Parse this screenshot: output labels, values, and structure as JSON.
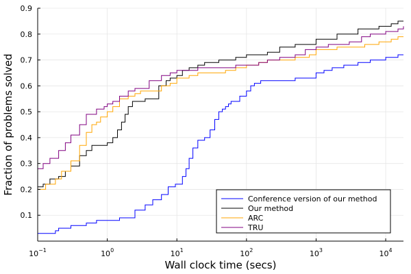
{
  "chart_data": {
    "type": "line",
    "title": "",
    "xlabel": "Wall clock time (secs)",
    "ylabel": "Fraction of problems solved",
    "xscale": "log10",
    "xlim": [
      0.1,
      18000
    ],
    "ylim": [
      0.0,
      0.9
    ],
    "grid": true,
    "legend_position": "bottom-right",
    "x_ticks": [
      {
        "value": 0.1,
        "base": "10",
        "exp": "−1"
      },
      {
        "value": 1,
        "base": "10",
        "exp": "0"
      },
      {
        "value": 10,
        "base": "10",
        "exp": "1"
      },
      {
        "value": 100,
        "base": "10",
        "exp": "2"
      },
      {
        "value": 1000,
        "base": "10",
        "exp": "3"
      },
      {
        "value": 10000,
        "base": "10",
        "exp": "4"
      }
    ],
    "y_ticks": [
      "0.1",
      "0.2",
      "0.3",
      "0.4",
      "0.5",
      "0.6",
      "0.7",
      "0.8",
      "0.9"
    ],
    "series": [
      {
        "name": "Conference version of our method",
        "color": "#0000ff",
        "x": [
          0.1,
          0.18,
          0.2,
          0.3,
          0.5,
          0.7,
          1.5,
          2.5,
          3.5,
          4.5,
          6,
          7.5,
          9.5,
          12,
          13.5,
          15,
          17,
          20,
          25,
          30,
          35,
          40,
          45,
          50,
          55,
          60,
          80,
          100,
          115,
          130,
          160,
          200,
          300,
          500,
          700,
          1000,
          1300,
          1700,
          2500,
          4000,
          6000,
          10000,
          15000,
          18000
        ],
        "y": [
          0.03,
          0.04,
          0.05,
          0.06,
          0.07,
          0.08,
          0.09,
          0.12,
          0.14,
          0.16,
          0.18,
          0.21,
          0.22,
          0.25,
          0.28,
          0.32,
          0.36,
          0.39,
          0.4,
          0.43,
          0.47,
          0.5,
          0.51,
          0.52,
          0.53,
          0.54,
          0.56,
          0.58,
          0.6,
          0.61,
          0.62,
          0.62,
          0.62,
          0.63,
          0.63,
          0.65,
          0.66,
          0.67,
          0.68,
          0.69,
          0.7,
          0.71,
          0.72,
          0.72
        ]
      },
      {
        "name": "Our method",
        "color": "#000000",
        "x": [
          0.1,
          0.12,
          0.15,
          0.2,
          0.25,
          0.3,
          0.4,
          0.5,
          0.6,
          0.8,
          1.0,
          1.2,
          1.4,
          1.6,
          1.8,
          2.0,
          2.3,
          2.6,
          3.0,
          3.5,
          5.5,
          7,
          8,
          10,
          12,
          15,
          20,
          25,
          30,
          40,
          50,
          70,
          100,
          130,
          200,
          300,
          500,
          1000,
          2000,
          4000,
          8000,
          12000,
          15000,
          18000
        ],
        "y": [
          0.21,
          0.22,
          0.24,
          0.25,
          0.27,
          0.29,
          0.33,
          0.35,
          0.37,
          0.37,
          0.38,
          0.4,
          0.43,
          0.46,
          0.49,
          0.52,
          0.54,
          0.54,
          0.54,
          0.55,
          0.6,
          0.62,
          0.63,
          0.64,
          0.66,
          0.67,
          0.68,
          0.69,
          0.69,
          0.7,
          0.7,
          0.71,
          0.72,
          0.72,
          0.73,
          0.75,
          0.76,
          0.78,
          0.8,
          0.82,
          0.83,
          0.84,
          0.85,
          0.85
        ]
      },
      {
        "name": "ARC",
        "color": "#ffa500",
        "x": [
          0.1,
          0.13,
          0.18,
          0.22,
          0.3,
          0.4,
          0.5,
          0.6,
          0.7,
          0.8,
          1.0,
          1.2,
          1.5,
          2.0,
          2.5,
          3.0,
          4.0,
          6,
          8,
          10,
          15,
          20,
          30,
          50,
          70,
          100,
          150,
          200,
          300,
          500,
          800,
          1000,
          1500,
          2000,
          3000,
          5000,
          8000,
          12000,
          15000,
          18000
        ],
        "y": [
          0.2,
          0.22,
          0.24,
          0.27,
          0.31,
          0.37,
          0.42,
          0.45,
          0.46,
          0.48,
          0.5,
          0.52,
          0.55,
          0.56,
          0.57,
          0.58,
          0.58,
          0.6,
          0.61,
          0.63,
          0.64,
          0.65,
          0.65,
          0.66,
          0.67,
          0.68,
          0.69,
          0.7,
          0.7,
          0.71,
          0.72,
          0.74,
          0.74,
          0.75,
          0.75,
          0.76,
          0.77,
          0.78,
          0.79,
          0.79
        ]
      },
      {
        "name": "TRU",
        "color": "#800080",
        "x": [
          0.1,
          0.12,
          0.15,
          0.2,
          0.25,
          0.3,
          0.4,
          0.5,
          0.7,
          0.9,
          1.0,
          1.2,
          1.5,
          2.0,
          2.5,
          3.0,
          4.0,
          6,
          8,
          10,
          15,
          20,
          30,
          50,
          70,
          100,
          150,
          200,
          300,
          500,
          700,
          1000,
          1500,
          2000,
          3000,
          4500,
          6000,
          10000,
          15000,
          18000
        ],
        "y": [
          0.28,
          0.3,
          0.32,
          0.35,
          0.38,
          0.41,
          0.45,
          0.49,
          0.51,
          0.52,
          0.53,
          0.54,
          0.56,
          0.58,
          0.59,
          0.59,
          0.62,
          0.64,
          0.65,
          0.66,
          0.66,
          0.67,
          0.67,
          0.67,
          0.68,
          0.68,
          0.69,
          0.7,
          0.71,
          0.72,
          0.74,
          0.75,
          0.76,
          0.76,
          0.77,
          0.79,
          0.8,
          0.81,
          0.82,
          0.83
        ]
      }
    ]
  }
}
